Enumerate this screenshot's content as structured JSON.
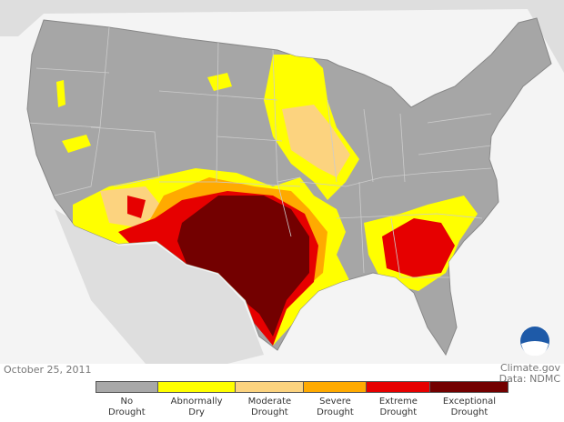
{
  "date": "October 25, 2011",
  "credit": {
    "source": "Climate.gov",
    "data": "Data: NDMC"
  },
  "legend": {
    "items": [
      {
        "label": "No Drought",
        "color": "#a8a8a8"
      },
      {
        "label": "Abnormally Dry",
        "color": "#ffff00"
      },
      {
        "label": "Moderate Drought",
        "color": "#fcd37f"
      },
      {
        "label": "Severe Drought",
        "color": "#ffaa00"
      },
      {
        "label": "Extreme Drought",
        "color": "#e60000"
      },
      {
        "label": "Exceptional Drought",
        "color": "#730000"
      }
    ]
  }
}
